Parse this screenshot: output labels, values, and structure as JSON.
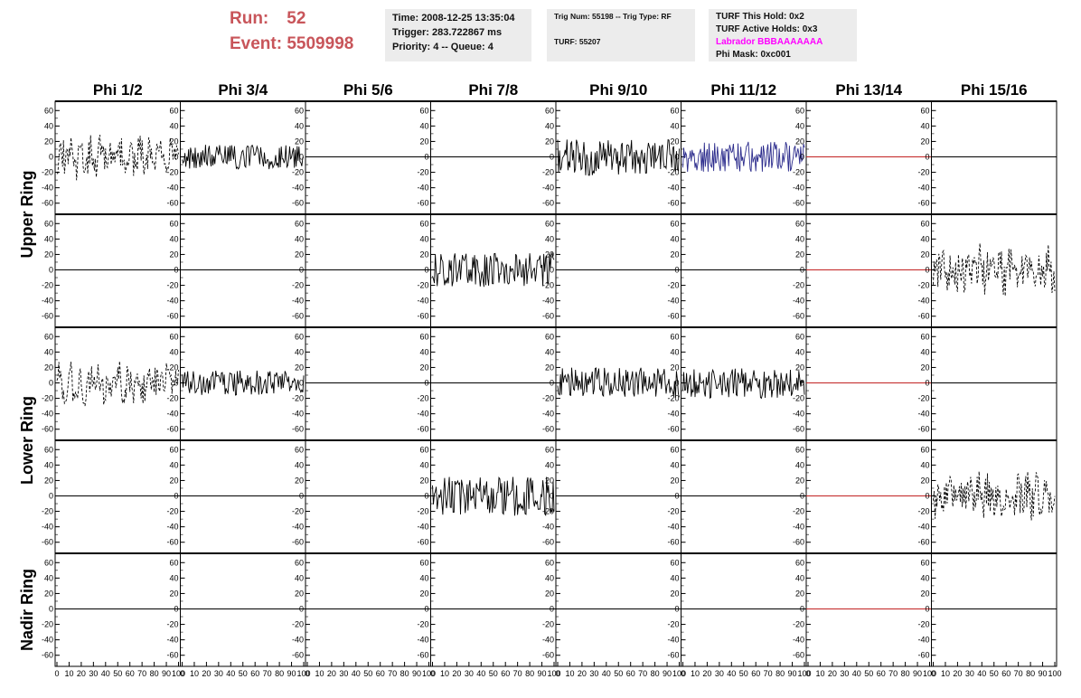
{
  "header": {
    "run_label": "Run:",
    "run_value": "52",
    "event_label": "Event:",
    "event_value": "5509998",
    "time_info": {
      "time": "Time: 2008-12-25 13:35:04",
      "trigger": "Trigger: 283.722867 ms",
      "priority": "Priority: 4 -- Queue: 4"
    },
    "trig_info": {
      "trig": "Trig Num: 55198 -- Trig Type: RF",
      "turf": "TURF: 55207"
    },
    "turf_info": {
      "this_hold": "TURF This Hold: 0x2",
      "active_holds": "TURF Active Holds: 0x3",
      "labrador": "Labrador BBBAAAAAAA",
      "phi_mask": "Phi Mask: 0xc001"
    },
    "colors": {
      "run": "#c8555a",
      "labrador": "#ff00ff",
      "box_bg": "#ececec"
    }
  },
  "columns": [
    "Phi 1/2",
    "Phi 3/4",
    "Phi 5/6",
    "Phi 7/8",
    "Phi 9/10",
    "Phi 11/12",
    "Phi 13/14",
    "Phi 15/16"
  ],
  "rings": [
    "Upper Ring",
    "Lower Ring",
    "Nadir Ring"
  ],
  "y_ticks": [
    "60",
    "40",
    "20",
    "0",
    "-20",
    "-40",
    "-60"
  ],
  "x_ticks": [
    "0",
    "10",
    "20",
    "30",
    "40",
    "50",
    "60",
    "70",
    "80",
    "90",
    "100"
  ],
  "chart_data": {
    "type": "line",
    "ylim": [
      -65,
      65
    ],
    "xlim": [
      0,
      100
    ],
    "rows": 5,
    "cols": 8,
    "series_colors": {
      "black": "#000000",
      "blue": "#2b2b8c",
      "red": "#c22222"
    },
    "panels": [
      {
        "row": 0,
        "col": 0,
        "style": "dashed",
        "color": "black",
        "amp": 22,
        "seed": 11
      },
      {
        "row": 0,
        "col": 1,
        "style": "solid",
        "color": "black",
        "amp": 16,
        "seed": 12
      },
      {
        "row": 0,
        "col": 2,
        "style": "flat",
        "color": "black",
        "amp": 0,
        "seed": 13
      },
      {
        "row": 0,
        "col": 3,
        "style": "flat",
        "color": "black",
        "amp": 0,
        "seed": 14
      },
      {
        "row": 0,
        "col": 4,
        "style": "solid",
        "color": "black",
        "amp": 24,
        "seed": 15
      },
      {
        "row": 0,
        "col": 5,
        "style": "solid",
        "color": "blue",
        "amp": 20,
        "seed": 16
      },
      {
        "row": 0,
        "col": 6,
        "style": "flat",
        "color": "red",
        "amp": 0,
        "seed": 17
      },
      {
        "row": 0,
        "col": 7,
        "style": "flat",
        "color": "black",
        "amp": 0,
        "seed": 18
      },
      {
        "row": 1,
        "col": 0,
        "style": "flat",
        "color": "black",
        "amp": 0,
        "seed": 21
      },
      {
        "row": 1,
        "col": 1,
        "style": "flat",
        "color": "black",
        "amp": 0,
        "seed": 22
      },
      {
        "row": 1,
        "col": 2,
        "style": "flat",
        "color": "black",
        "amp": 0,
        "seed": 23
      },
      {
        "row": 1,
        "col": 3,
        "style": "solid",
        "color": "black",
        "amp": 22,
        "seed": 24
      },
      {
        "row": 1,
        "col": 4,
        "style": "flat",
        "color": "black",
        "amp": 0,
        "seed": 25
      },
      {
        "row": 1,
        "col": 5,
        "style": "flat",
        "color": "black",
        "amp": 0,
        "seed": 26
      },
      {
        "row": 1,
        "col": 6,
        "style": "flat",
        "color": "red",
        "amp": 0,
        "seed": 27
      },
      {
        "row": 1,
        "col": 7,
        "style": "dashed",
        "color": "black",
        "amp": 26,
        "seed": 28
      },
      {
        "row": 2,
        "col": 0,
        "style": "dashed",
        "color": "black",
        "amp": 22,
        "seed": 31
      },
      {
        "row": 2,
        "col": 1,
        "style": "solid",
        "color": "black",
        "amp": 16,
        "seed": 32
      },
      {
        "row": 2,
        "col": 2,
        "style": "flat",
        "color": "black",
        "amp": 0,
        "seed": 33
      },
      {
        "row": 2,
        "col": 3,
        "style": "flat",
        "color": "black",
        "amp": 0,
        "seed": 34
      },
      {
        "row": 2,
        "col": 4,
        "style": "solid",
        "color": "black",
        "amp": 20,
        "seed": 35
      },
      {
        "row": 2,
        "col": 5,
        "style": "solid",
        "color": "black",
        "amp": 20,
        "seed": 36
      },
      {
        "row": 2,
        "col": 6,
        "style": "flat",
        "color": "red",
        "amp": 0,
        "seed": 37
      },
      {
        "row": 2,
        "col": 7,
        "style": "flat",
        "color": "black",
        "amp": 0,
        "seed": 38
      },
      {
        "row": 3,
        "col": 0,
        "style": "flat",
        "color": "black",
        "amp": 0,
        "seed": 41
      },
      {
        "row": 3,
        "col": 1,
        "style": "flat",
        "color": "black",
        "amp": 0,
        "seed": 42
      },
      {
        "row": 3,
        "col": 2,
        "style": "flat",
        "color": "black",
        "amp": 0,
        "seed": 43
      },
      {
        "row": 3,
        "col": 3,
        "style": "solid",
        "color": "black",
        "amp": 26,
        "seed": 44
      },
      {
        "row": 3,
        "col": 4,
        "style": "flat",
        "color": "black",
        "amp": 0,
        "seed": 45
      },
      {
        "row": 3,
        "col": 5,
        "style": "flat",
        "color": "black",
        "amp": 0,
        "seed": 46
      },
      {
        "row": 3,
        "col": 6,
        "style": "flat",
        "color": "red",
        "amp": 0,
        "seed": 47
      },
      {
        "row": 3,
        "col": 7,
        "style": "dashed",
        "color": "black",
        "amp": 24,
        "seed": 48
      },
      {
        "row": 4,
        "col": 0,
        "style": "flat",
        "color": "black",
        "amp": 0,
        "seed": 51
      },
      {
        "row": 4,
        "col": 1,
        "style": "flat",
        "color": "black",
        "amp": 0,
        "seed": 52
      },
      {
        "row": 4,
        "col": 2,
        "style": "flat",
        "color": "black",
        "amp": 0,
        "seed": 53
      },
      {
        "row": 4,
        "col": 3,
        "style": "flat",
        "color": "black",
        "amp": 0,
        "seed": 54
      },
      {
        "row": 4,
        "col": 4,
        "style": "flat",
        "color": "black",
        "amp": 0,
        "seed": 55
      },
      {
        "row": 4,
        "col": 5,
        "style": "flat",
        "color": "black",
        "amp": 0,
        "seed": 56
      },
      {
        "row": 4,
        "col": 6,
        "style": "flat",
        "color": "red",
        "amp": 0,
        "seed": 57
      },
      {
        "row": 4,
        "col": 7,
        "style": "flat",
        "color": "black",
        "amp": 0,
        "seed": 58
      }
    ]
  }
}
